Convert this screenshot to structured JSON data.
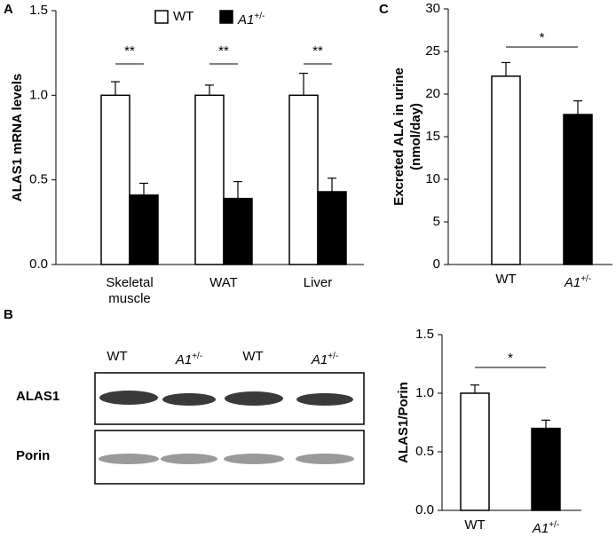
{
  "panels": [
    "A",
    "B",
    "C"
  ],
  "blot": {
    "lanes": [
      "WT",
      "A1+/-",
      "WT",
      "A1+/-"
    ],
    "rows": [
      "ALAS1",
      "Porin"
    ]
  },
  "chart_data": [
    {
      "type": "bar",
      "y_label": "ALAS1 mRNA levels",
      "categories": [
        "Skeletal muscle",
        "WAT",
        "Liver"
      ],
      "series": [
        {
          "name": "WT",
          "color": "#ffffff",
          "values": [
            1.0,
            1.0,
            1.0
          ],
          "errors": [
            0.08,
            0.06,
            0.13
          ]
        },
        {
          "name": "A1+/-",
          "color": "#000000",
          "values": [
            0.41,
            0.39,
            0.43
          ],
          "errors": [
            0.07,
            0.1,
            0.08
          ]
        }
      ],
      "significance": [
        "**",
        "**",
        "**"
      ],
      "ylim": [
        0,
        1.5
      ],
      "yticks": [
        {
          "value": 0,
          "label": "0.0"
        },
        0.5,
        {
          "value": 1,
          "label": "1.0"
        },
        1.5
      ]
    },
    {
      "type": "bar",
      "y_label": [
        "Excreted ALA in urine",
        "(nmol/day)"
      ],
      "categories": [
        "WT",
        "A1+/-"
      ],
      "colors": [
        "#ffffff",
        "#000000"
      ],
      "values": [
        22.1,
        17.6
      ],
      "errors": [
        1.6,
        1.6
      ],
      "significance": "*",
      "ylim": [
        0,
        30
      ],
      "yticks": [
        0,
        5,
        10,
        15,
        20,
        25,
        30
      ]
    },
    {
      "type": "bar",
      "y_label": "ALAS1/Porin",
      "categories": [
        "WT",
        "A1+/-"
      ],
      "colors": [
        "#ffffff",
        "#000000"
      ],
      "values": [
        1.0,
        0.7
      ],
      "errors": [
        0.07,
        0.07
      ],
      "significance": "*",
      "ylim": [
        0,
        1.5
      ],
      "yticks": [
        {
          "value": 0,
          "label": "0.0"
        },
        0.5,
        {
          "value": 1,
          "label": "1.0"
        },
        1.5
      ]
    }
  ]
}
